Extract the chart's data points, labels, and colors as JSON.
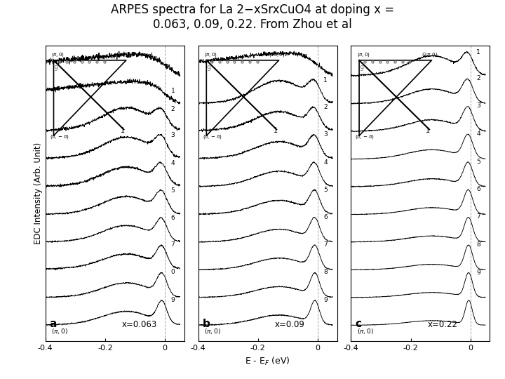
{
  "title": "ARPES spectra for La 2−xSrxCuO4 at doping x =\n0.063, 0.09, 0.22. From Zhou et al",
  "title_fontsize": 12,
  "xlabel": "E - E$_F$ (eV)",
  "ylabel": "EDC Intensity (Arb. Unit)",
  "background_color": "white",
  "panel_labels": [
    "a",
    "b",
    "c"
  ],
  "panel_x_labels": [
    "x=0.063",
    "x=0.09",
    "x=0.22"
  ],
  "curve_labels_a": [
    "",
    "1",
    "2",
    "3",
    "4",
    "5",
    "6",
    "7",
    "0",
    "9"
  ],
  "curve_labels_b": [
    "",
    "1",
    "2",
    "3",
    "4",
    "5",
    "6",
    "7",
    "8",
    "9"
  ],
  "curve_labels_c": [
    "1",
    "2",
    "3",
    "4",
    "5",
    "6",
    "7",
    "8",
    "9",
    ""
  ]
}
